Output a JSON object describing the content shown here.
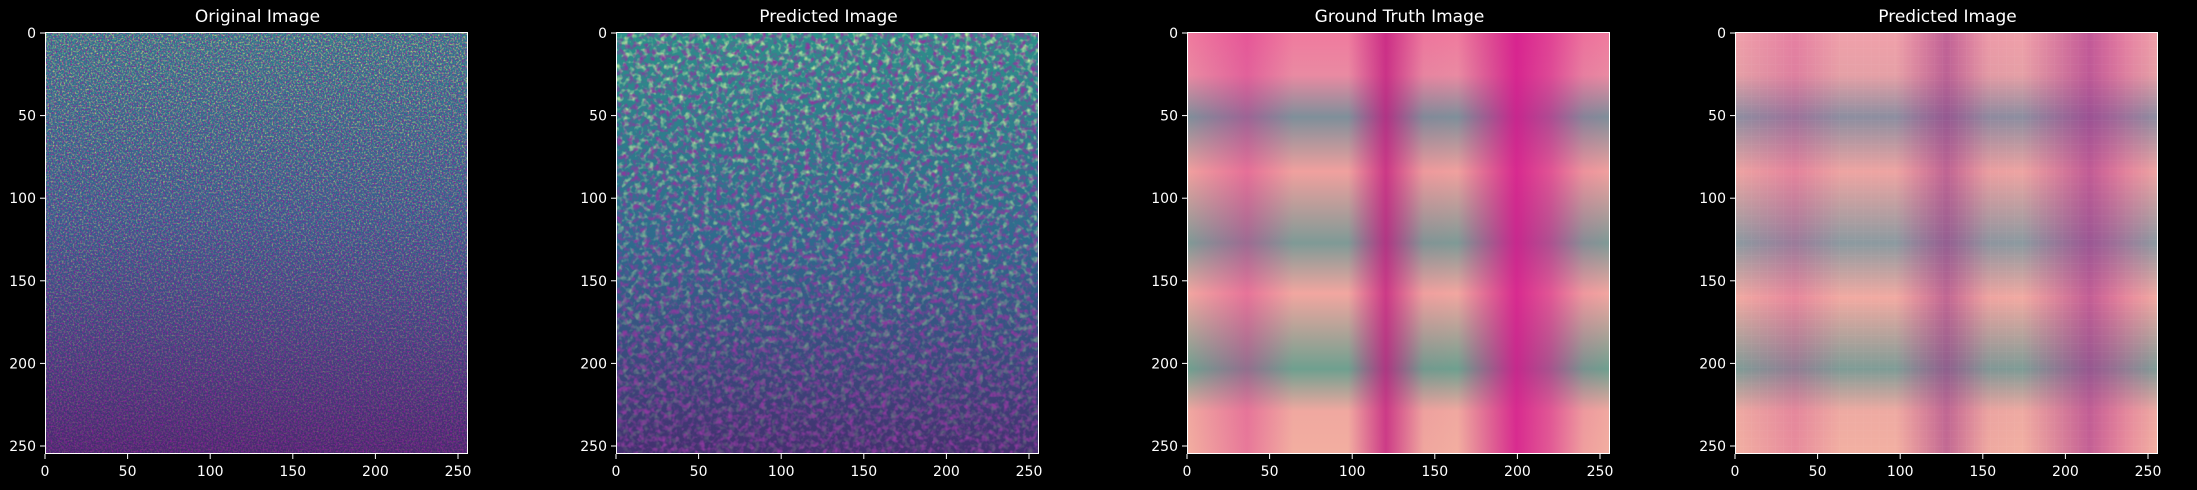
{
  "panels": [
    {
      "title": "Original Image",
      "style": "viridis-noise",
      "xticks": [
        "0",
        "50",
        "100",
        "150",
        "200",
        "250"
      ],
      "yticks": [
        "0",
        "50",
        "100",
        "150",
        "200",
        "250"
      ]
    },
    {
      "title": "Predicted Image",
      "style": "viridis-smooth",
      "xticks": [
        "0",
        "50",
        "100",
        "150",
        "200",
        "250"
      ],
      "yticks": [
        "0",
        "50",
        "100",
        "150",
        "200",
        "250"
      ]
    },
    {
      "title": "Ground Truth Image",
      "style": "pink-plaid",
      "xticks": [
        "0",
        "50",
        "100",
        "150",
        "200",
        "250"
      ],
      "yticks": [
        "0",
        "50",
        "100",
        "150",
        "200",
        "250"
      ]
    },
    {
      "title": "Predicted Image",
      "style": "pink-plaid-predicted",
      "xticks": [
        "0",
        "50",
        "100",
        "150",
        "200",
        "250"
      ],
      "yticks": [
        "0",
        "50",
        "100",
        "150",
        "200",
        "250"
      ]
    }
  ],
  "colors": {
    "background": "#000000",
    "text": "#ffffff",
    "viridis_dark": "#440154",
    "viridis_mid": "#21918c",
    "viridis_light": "#fde725",
    "plaid_pink": "#f0a0a8",
    "plaid_magenta": "#d4148c",
    "plaid_teal": "#6f9f94"
  }
}
